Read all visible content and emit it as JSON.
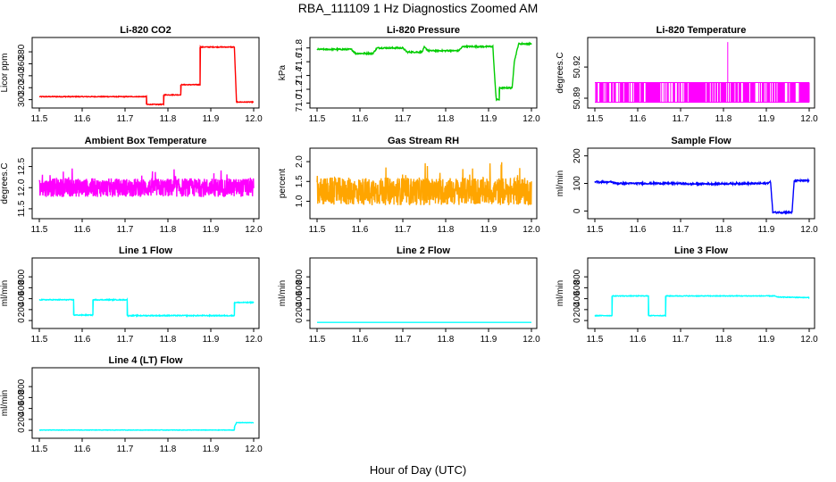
{
  "figure": {
    "title": "RBA_111109  1 Hz Diagnostics Zoomed AM",
    "xlabel": "Hour of Day (UTC)"
  },
  "chart_data": [
    {
      "type": "line",
      "title": "Li-820 CO2",
      "ylabel": "Licor ppm",
      "color": "#ff0000",
      "xlim": [
        11.5,
        12.0
      ],
      "ylim": [
        292,
        398
      ],
      "xticks": [
        "11.5",
        "11.6",
        "11.7",
        "11.8",
        "11.9",
        "12.0"
      ],
      "yticks": [
        300,
        320,
        340,
        360,
        380
      ],
      "noise": 0.6,
      "series": [
        {
          "x": [
            11.5,
            11.75,
            11.75,
            11.79,
            11.79,
            11.83,
            11.83,
            11.875,
            11.875,
            11.955,
            11.955,
            11.96,
            11.96,
            12.0
          ],
          "y": [
            305,
            305,
            292,
            292,
            308,
            308,
            325,
            325,
            388,
            388,
            388,
            296,
            296,
            296
          ]
        }
      ]
    },
    {
      "type": "line",
      "title": "Li-820 Pressure",
      "ylabel": "kPa",
      "color": "#00cc00",
      "xlim": [
        11.5,
        12.0
      ],
      "ylim": [
        70.98,
        71.9
      ],
      "xticks": [
        "11.5",
        "11.6",
        "11.7",
        "11.8",
        "11.9",
        "12.0"
      ],
      "yticks": [
        "71.0",
        "71.2",
        "71.4",
        "71.6",
        "71.8"
      ],
      "noise": 0.01,
      "series": [
        {
          "x": [
            11.5,
            11.58,
            11.59,
            11.63,
            11.64,
            11.7,
            11.71,
            11.745,
            11.75,
            11.76,
            11.77,
            11.83,
            11.84,
            11.91,
            11.915,
            11.918,
            11.925,
            11.925,
            11.955,
            11.96,
            11.97,
            12.0
          ],
          "y": [
            71.78,
            71.78,
            71.72,
            71.72,
            71.8,
            71.8,
            71.74,
            71.74,
            71.81,
            71.76,
            71.76,
            71.76,
            71.82,
            71.82,
            71.3,
            71.05,
            71.05,
            71.22,
            71.22,
            71.6,
            71.86,
            71.86
          ]
        }
      ]
    },
    {
      "type": "line",
      "title": "Li-820 Temperature",
      "ylabel": "degrees.C",
      "color": "#ff00ff",
      "xlim": [
        11.5,
        12.0
      ],
      "ylim": [
        50.884,
        50.945
      ],
      "xticks": [
        "11.5",
        "11.6",
        "11.7",
        "11.8",
        "11.9",
        "12.0"
      ],
      "yticks": [
        "50.89",
        "50.92"
      ],
      "style": "binary",
      "base": 50.905,
      "levels": [
        50.886,
        50.905
      ],
      "spike": {
        "x": 11.81,
        "y": 50.944
      },
      "series": []
    },
    {
      "type": "line",
      "title": "Ambient Box Temperature",
      "ylabel": "degrees.C",
      "color": "#ff00ff",
      "xlim": [
        11.5,
        12.0
      ],
      "ylim": [
        11.35,
        12.85
      ],
      "xticks": [
        "11.5",
        "11.6",
        "11.7",
        "11.8",
        "11.9",
        "12.0"
      ],
      "yticks": [
        "11.5",
        "12.0",
        "12.5"
      ],
      "style": "noise",
      "base": 12.0,
      "amp": 0.22,
      "series": []
    },
    {
      "type": "line",
      "title": "Gas Stream RH",
      "ylabel": "percent",
      "color": "#ffa500",
      "xlim": [
        11.5,
        12.0
      ],
      "ylim": [
        0.65,
        2.25
      ],
      "xticks": [
        "11.5",
        "11.6",
        "11.7",
        "11.8",
        "11.9",
        "12.0"
      ],
      "yticks": [
        "1.0",
        "1.5",
        "2.0"
      ],
      "style": "noise",
      "base": 1.25,
      "amp": 0.35,
      "series": []
    },
    {
      "type": "line",
      "title": "Sample Flow",
      "ylabel": "ml/min",
      "color": "#0000ff",
      "xlim": [
        11.5,
        12.0
      ],
      "ylim": [
        -15,
        215
      ],
      "xticks": [
        "11.5",
        "11.6",
        "11.7",
        "11.8",
        "11.9",
        "12.0"
      ],
      "yticks": [
        0,
        100,
        200
      ],
      "noise": 3,
      "series": [
        {
          "x": [
            11.5,
            11.54,
            11.55,
            11.7,
            11.72,
            11.9,
            11.91,
            11.915,
            11.955,
            11.96,
            11.965,
            12.0
          ],
          "y": [
            105,
            105,
            100,
            100,
            98,
            100,
            105,
            -5,
            -5,
            -5,
            110,
            110
          ]
        }
      ]
    },
    {
      "type": "line",
      "title": "Line 1 Flow",
      "ylabel": "ml/min",
      "color": "#00ffff",
      "xlim": [
        11.5,
        12.0
      ],
      "ylim": [
        -80,
        1080
      ],
      "xticks": [
        "11.5",
        "11.6",
        "11.7",
        "11.8",
        "11.9",
        "12.0"
      ],
      "yticks": [
        0,
        200,
        400,
        600,
        800
      ],
      "noise": 8,
      "series": [
        {
          "x": [
            11.5,
            11.58,
            11.58,
            11.625,
            11.625,
            11.705,
            11.705,
            11.955,
            11.955,
            12.0
          ],
          "y": [
            380,
            380,
            100,
            100,
            380,
            380,
            90,
            90,
            330,
            330
          ]
        }
      ]
    },
    {
      "type": "line",
      "title": "Line 2 Flow",
      "ylabel": "ml/min",
      "color": "#00ffff",
      "xlim": [
        11.5,
        12.0
      ],
      "ylim": [
        -80,
        1080
      ],
      "xticks": [
        "11.5",
        "11.6",
        "11.7",
        "11.8",
        "11.9",
        "12.0"
      ],
      "yticks": [
        0,
        200,
        400,
        600,
        800
      ],
      "noise": 0,
      "series": [
        {
          "x": [
            11.5,
            12.0
          ],
          "y": [
            -35,
            -35
          ]
        }
      ]
    },
    {
      "type": "line",
      "title": "Line 3 Flow",
      "ylabel": "ml/min",
      "color": "#00ffff",
      "xlim": [
        11.5,
        12.0
      ],
      "ylim": [
        -80,
        1080
      ],
      "xticks": [
        "11.5",
        "11.6",
        "11.7",
        "11.8",
        "11.9",
        "12.0"
      ],
      "yticks": [
        0,
        200,
        400,
        600,
        800
      ],
      "noise": 6,
      "series": [
        {
          "x": [
            11.5,
            11.54,
            11.54,
            11.625,
            11.625,
            11.665,
            11.665,
            11.92,
            11.925,
            12.0
          ],
          "y": [
            90,
            90,
            450,
            450,
            90,
            90,
            450,
            450,
            430,
            420
          ]
        }
      ]
    },
    {
      "type": "line",
      "title": "Line 4 (LT) Flow",
      "ylabel": "ml/min",
      "color": "#00ffff",
      "xlim": [
        11.5,
        12.0
      ],
      "ylim": [
        -80,
        1080
      ],
      "xticks": [
        "11.5",
        "11.6",
        "11.7",
        "11.8",
        "11.9",
        "12.0"
      ],
      "yticks": [
        0,
        200,
        400,
        600,
        800
      ],
      "noise": 4,
      "series": [
        {
          "x": [
            11.5,
            11.955,
            11.955,
            11.96,
            12.0
          ],
          "y": [
            5,
            5,
            60,
            140,
            140
          ]
        }
      ]
    }
  ]
}
